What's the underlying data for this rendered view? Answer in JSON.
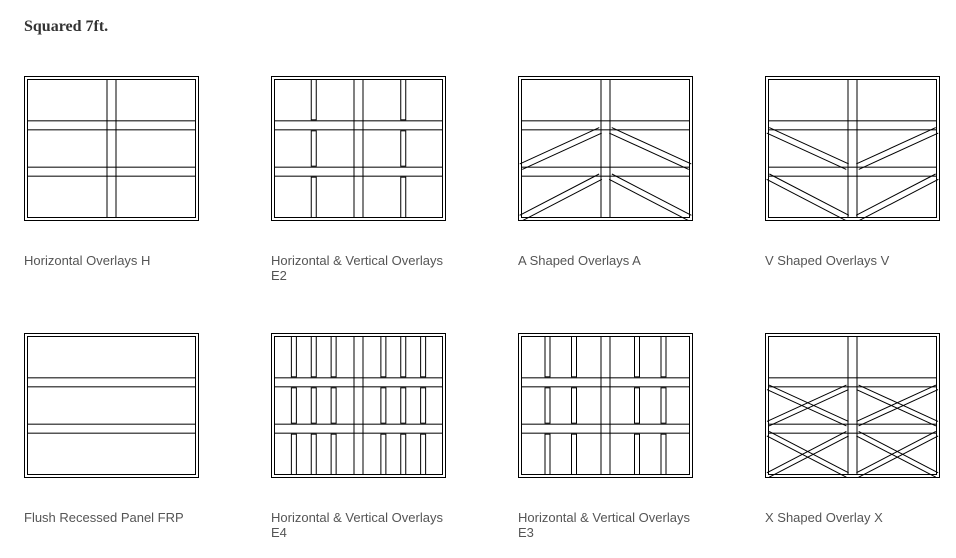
{
  "section_title": "Squared 7ft.",
  "colors": {
    "background": "#ffffff",
    "stroke": "#000000",
    "text": "#555555",
    "title_text": "#333333"
  },
  "typography": {
    "title_family": "Georgia, serif",
    "title_size_pt": 12,
    "title_weight": "bold",
    "caption_family": "Helvetica, Arial, sans-serif",
    "caption_size_pt": 10,
    "caption_weight": "normal"
  },
  "door_geometry": {
    "viewbox_w": 175,
    "viewbox_h": 145,
    "outer_border": 3,
    "row_band": 10,
    "mid_stile_w": 10,
    "thin_stile_w": 6,
    "fill": "#ffffff"
  },
  "items": [
    {
      "type": "horizontal",
      "label": "Horizontal Overlays H",
      "rows": 3,
      "mid_vertical": true,
      "diagonals": "none"
    },
    {
      "type": "e2",
      "label": "Horizontal & Vertical Overlays E2",
      "rows": 3,
      "panels_per_half": 2,
      "diagonals": "none"
    },
    {
      "type": "a_shape",
      "label": "A Shaped Overlays A",
      "rows": 3,
      "diagonals": "A"
    },
    {
      "type": "v_shape",
      "label": "V Shaped Overlays V",
      "rows": 3,
      "diagonals": "V"
    },
    {
      "type": "flush",
      "label": "Flush Recessed Panel FRP",
      "rows": 3,
      "diagonals": "none"
    },
    {
      "type": "e4",
      "label": "Horizontal & Vertical Overlays E4",
      "rows": 3,
      "panels_per_half": 4,
      "diagonals": "none"
    },
    {
      "type": "e3",
      "label": "Horizontal & Vertical Overlays E3",
      "rows": 3,
      "panels_per_half": 3,
      "diagonals": "none"
    },
    {
      "type": "x_shape",
      "label": "X Shaped Overlay X",
      "rows": 3,
      "diagonals": "X"
    }
  ]
}
